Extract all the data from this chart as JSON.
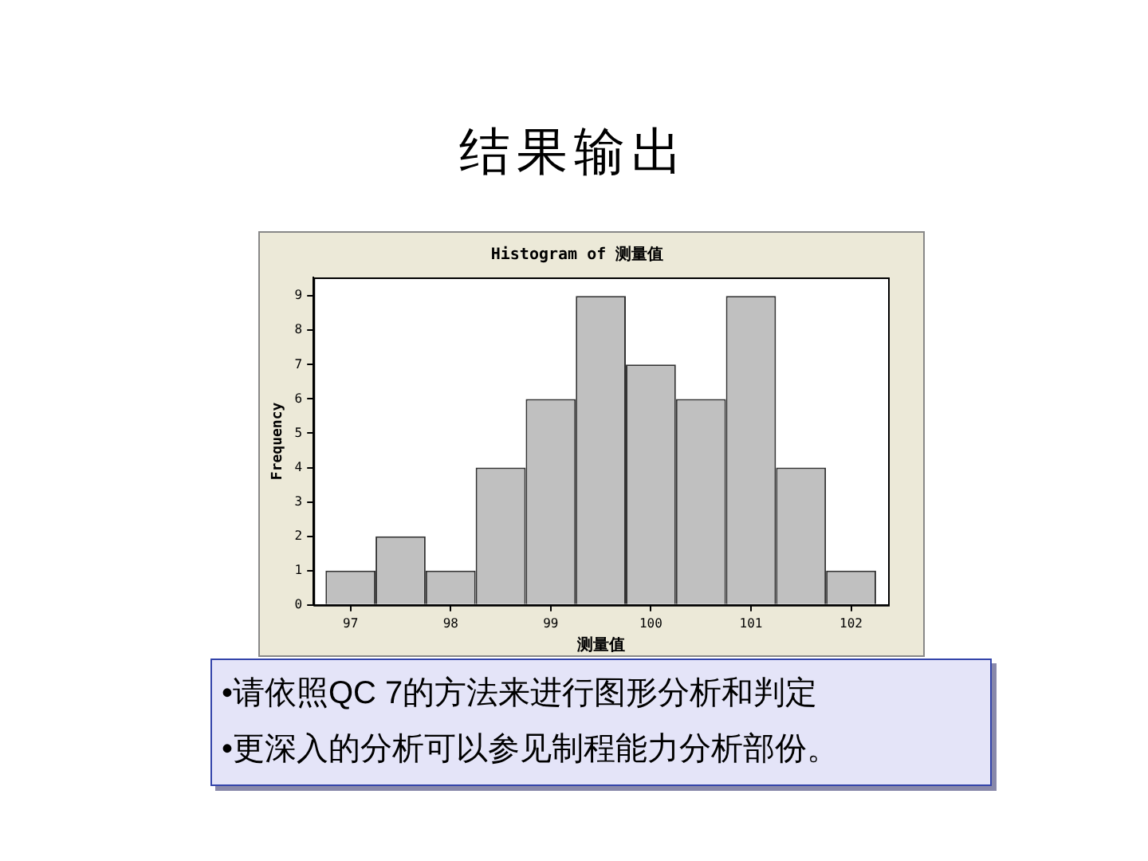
{
  "chart_data": {
    "type": "histogram",
    "title": "结果输出",
    "subtitle": "Histogram of 测量值",
    "xlabel": "测量值",
    "ylabel": "Frequency",
    "bins": [
      96.75,
      97.25,
      97.75,
      98.25,
      98.75,
      99.25,
      99.75,
      100.25,
      100.75,
      101.25,
      101.75,
      102.25
    ],
    "values": [
      1,
      2,
      1,
      4,
      6,
      9,
      7,
      6,
      9,
      4,
      1
    ],
    "color": "#c0c0c0",
    "xlim": [
      96.63,
      102.37
    ],
    "xticks": [
      97,
      98,
      99,
      100,
      101,
      102
    ],
    "ylim": [
      0,
      9.54
    ],
    "yticks": [
      0,
      1,
      2,
      3,
      4,
      5,
      6,
      7,
      8,
      9
    ],
    "grid": false,
    "legend": false,
    "annotations": [
      "•请依照QC 7的方法来进行图形分析和判定",
      "•更深入的分析可以参见制程能力分析部份。"
    ]
  }
}
